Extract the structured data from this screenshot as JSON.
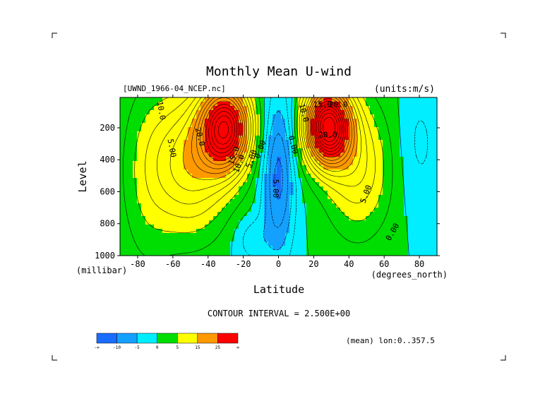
{
  "chart_data": {
    "type": "contour",
    "title": "Monthly Mean U-wind",
    "dataset_label": "[UWND_1966-04_NCEP.nc]",
    "units_label": "(units:m/s)",
    "xlabel": "Latitude",
    "xunits": "(degrees_north)",
    "ylabel": "Level",
    "yunits": "(millibar)",
    "xlim": [
      -90,
      90
    ],
    "ylim": [
      1000,
      10
    ],
    "x_ticks": [
      -80,
      -60,
      -40,
      -20,
      0,
      20,
      40,
      60,
      80
    ],
    "y_ticks": [
      200,
      400,
      600,
      800,
      1000
    ],
    "contour_interval_text": "CONTOUR INTERVAL = 2.500E+00",
    "subset_text": "(mean) lon:0..357.5",
    "colorbar": {
      "colors": [
        "#1a6cff",
        "#14a0ff",
        "#00eeff",
        "#00dd00",
        "#ffff00",
        "#ff9900",
        "#ff0000"
      ],
      "tick_labels": [
        "-∞",
        "-10",
        "-5",
        "0",
        "5",
        "15",
        "25",
        "∞"
      ]
    },
    "contour_labels": [
      {
        "text": "20.0",
        "lat": -46,
        "lev": 260,
        "rot": 75
      },
      {
        "text": "5.00",
        "lat": -62,
        "lev": 330,
        "rot": 80
      },
      {
        "text": "10.0",
        "lat": -68,
        "lev": 95,
        "rot": 80
      },
      {
        "text": "15.0",
        "lat": -24,
        "lev": 380,
        "rot": -70
      },
      {
        "text": "10.0",
        "lat": -21,
        "lev": 430,
        "rot": -70
      },
      {
        "text": "5.00",
        "lat": -14,
        "lev": 400,
        "rot": -70
      },
      {
        "text": "0.00",
        "lat": -9,
        "lev": 340,
        "rot": -70
      },
      {
        "text": "5.00",
        "lat": -3,
        "lev": 580,
        "rot": 90
      },
      {
        "text": "0.00",
        "lat": 7,
        "lev": 310,
        "rot": 75
      },
      {
        "text": "10.0",
        "lat": 13,
        "lev": 110,
        "rot": 75
      },
      {
        "text": "15.0",
        "lat": 25,
        "lev": 70,
        "rot": 0
      },
      {
        "text": "20.0",
        "lat": 34,
        "lev": 70,
        "rot": 0
      },
      {
        "text": "20.0",
        "lat": 28,
        "lev": 260,
        "rot": 0
      },
      {
        "text": "5.00",
        "lat": 51,
        "lev": 620,
        "rot": -70
      },
      {
        "text": "0.00",
        "lat": 66,
        "lev": 860,
        "rot": -60
      }
    ],
    "wind_field_note": "Zonal-mean U-wind vs latitude and pressure: westerly jets near 30S and 30N at ~200 mb (>25 m/s), easterlies in tropical mid/lower troposphere (<-5 m/s)."
  }
}
